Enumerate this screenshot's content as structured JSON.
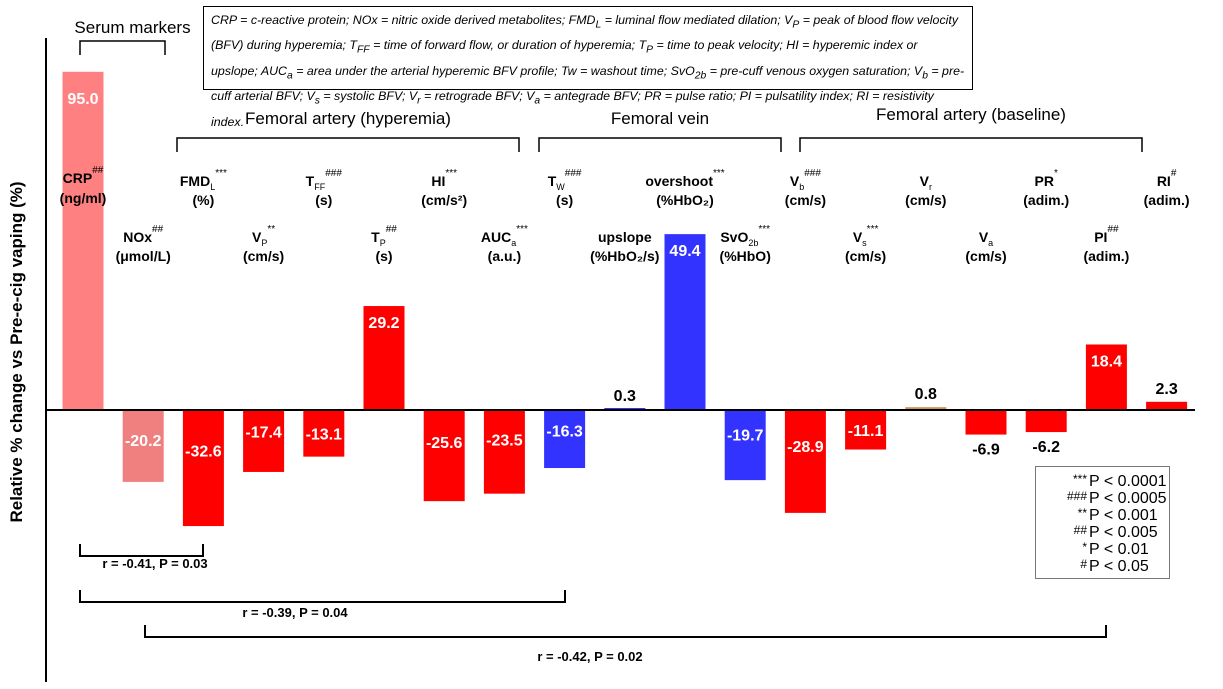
{
  "chart_data": {
    "type": "bar",
    "ylabel": "Relative % change vs Pre-e-cig vaping (%)",
    "categories": [
      "CRP",
      "NOx",
      "FMDL",
      "VP",
      "TFF",
      "TP",
      "HI",
      "AUCa",
      "TW",
      "upslope",
      "overshoot",
      "SvO2b",
      "Vb",
      "Vs",
      "Vr",
      "Va",
      "PR",
      "PI",
      "RI"
    ],
    "values": [
      95.0,
      -20.2,
      -32.6,
      -17.4,
      -13.1,
      29.2,
      -25.6,
      -23.5,
      -16.3,
      0.3,
      49.4,
      -19.7,
      -28.9,
      -11.1,
      0.8,
      -6.9,
      -6.2,
      18.4,
      2.3
    ],
    "value_labels": [
      "95.0",
      "-20.2",
      "-32.6",
      "-17.4",
      "-13.1",
      "29.2",
      "-25.6",
      "-23.5",
      "-16.3",
      "0.3",
      "49.4",
      "-19.7",
      "-28.9",
      "-11.1",
      "0.8",
      "-6.9",
      "-6.2",
      "18.4",
      "2.3"
    ],
    "colors": [
      "#ff8080",
      "#f08080",
      "#ff0000",
      "#ff0000",
      "#ff0000",
      "#ff0000",
      "#ff0000",
      "#ff0000",
      "#3333ff",
      "#3333ff",
      "#3333ff",
      "#3333ff",
      "#ff0000",
      "#ff0000",
      "#c8965a",
      "#ff0000",
      "#ff0000",
      "#ff0000",
      "#ff0000"
    ],
    "labels": [
      {
        "name": "CRP",
        "sup": "##",
        "unit": "(ng/ml)"
      },
      {
        "name": "NOx",
        "sup": "##",
        "unit": "(μmol/L)"
      },
      {
        "name": "FMD",
        "sub": "L",
        "sup": "***",
        "unit": "(%)"
      },
      {
        "name": "V",
        "sub": "P",
        "sup": "**",
        "unit": "(cm/s)"
      },
      {
        "name": "T",
        "sub": "FF",
        "sup": "###",
        "unit": "(s)"
      },
      {
        "name": "T",
        "sub": "P",
        "sup": "##",
        "unit": "(s)"
      },
      {
        "name": "HI",
        "sup": "***",
        "unit": "(cm/s²)"
      },
      {
        "name": "AUC",
        "sub": "a",
        "sup": "***",
        "unit": "(a.u.)"
      },
      {
        "name": "T",
        "sub": "W",
        "sup": "###",
        "unit": "(s)"
      },
      {
        "name": "upslope",
        "sup": "",
        "unit": "(%HbO₂/s)"
      },
      {
        "name": "overshoot",
        "sup": "***",
        "unit": "(%HbO₂)"
      },
      {
        "name": "SvO",
        "sub": "2b",
        "sup": "***",
        "unit": "(%HbO)"
      },
      {
        "name": "V",
        "sub": "b",
        "sup": "###",
        "unit": "(cm/s)"
      },
      {
        "name": "V",
        "sub": "s",
        "sup": "***",
        "unit": "(cm/s)"
      },
      {
        "name": "V",
        "sub": "r",
        "sup": "",
        "unit": "(cm/s)"
      },
      {
        "name": "V",
        "sub": "a",
        "sup": "",
        "unit": "(cm/s)"
      },
      {
        "name": "PR",
        "sup": "*",
        "unit": "(adim.)"
      },
      {
        "name": "PI",
        "sup": "##",
        "unit": "(adim.)"
      },
      {
        "name": "RI",
        "sup": "#",
        "unit": "(adim.)"
      }
    ],
    "groups": [
      {
        "label": "Serum markers",
        "from": 0,
        "to": 1
      },
      {
        "label": "Femoral artery (hyperemia)",
        "from": 2,
        "to": 7
      },
      {
        "label": "Femoral vein",
        "from": 8,
        "to": 11
      },
      {
        "label": "Femoral artery (baseline)",
        "from": 12,
        "to": 18
      }
    ],
    "correlations": [
      {
        "label": "r = -0.41, P = 0.03",
        "from": 0,
        "to": 2
      },
      {
        "label": "r = -0.39, P = 0.04",
        "from": 0,
        "to": 8
      },
      {
        "label": "r = -0.42, P = 0.02",
        "from": 1,
        "to": 17
      }
    ],
    "significance_legend": [
      {
        "symbol": "***",
        "text": "P < 0.0001"
      },
      {
        "symbol": "###",
        "text": "P < 0.0005"
      },
      {
        "symbol": "**",
        "text": "P < 0.001"
      },
      {
        "symbol": "##",
        "text": "P < 0.005"
      },
      {
        "symbol": "*",
        "text": "P < 0.01"
      },
      {
        "symbol": "#",
        "text": "P < 0.05"
      }
    ]
  },
  "abbreviations": {
    "crp": "CRP = c-reactive protein; ",
    "nox": "NOx = nitric oxide derived metabolites; ",
    "fmd": "FMD",
    "fmd_sub": "L",
    "fmd_def": " = luminal flow mediated dilation; ",
    "vp": "V",
    "vp_sub": "P",
    "vp_def": " = peak of blood flow velocity (BFV) during hyperemia; ",
    "tff": "T",
    "tff_sub": "FF",
    "tff_def": " = time of forward flow, or duration of hyperemia; ",
    "tp": "T",
    "tp_sub": "P",
    "tp_def": " = time to peak velocity; ",
    "hi": "HI = hyperemic index or upslope; ",
    "auc": "AUC",
    "auc_sub": "a",
    "auc_def": " = area under the arterial hyperemic BFV profile; ",
    "tw": "Tw = washout time; ",
    "svo": "SvO",
    "svo_sub": "2b",
    "svo_def": " = pre-cuff venous oxygen saturation; ",
    "vb": "V",
    "vb_sub": "b",
    "vb_def": " = pre-cuff arterial BFV; ",
    "vs": "V",
    "vs_sub": "s",
    "vs_def": " = systolic BFV; ",
    "vr": "V",
    "vr_sub": "r",
    "vr_def": " = retrograde BFV; ",
    "va": "V",
    "va_sub": "a",
    "va_def": " = antegrade BFV; ",
    "rest": "PR = pulse ratio; PI = pulsatility index; RI = resistivity index."
  }
}
